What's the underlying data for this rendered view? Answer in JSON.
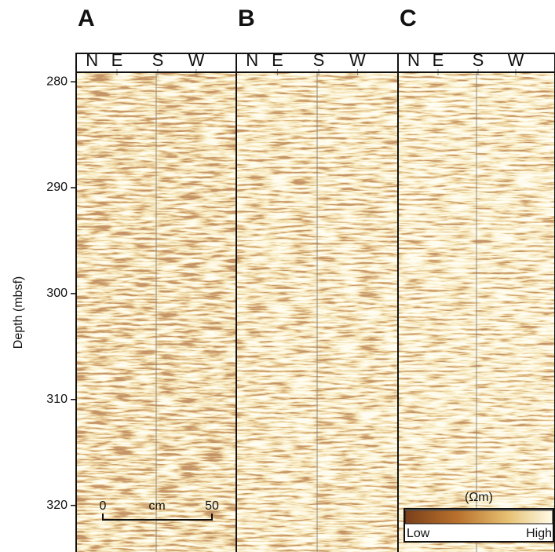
{
  "panels": [
    {
      "label": "A"
    },
    {
      "label": "B"
    },
    {
      "label": "C"
    }
  ],
  "compass": [
    "N",
    "E",
    "S",
    "W"
  ],
  "depth_axis": {
    "label": "Depth (mbsf)",
    "ylim": [
      279.1,
      324.4
    ],
    "ticks": [
      280,
      290,
      300,
      310,
      320
    ]
  },
  "scale_bar": {
    "start": "0",
    "unit": "cm",
    "end": "50"
  },
  "color_bar": {
    "unit": "(Ωm)",
    "low": "Low",
    "high": "High"
  }
}
